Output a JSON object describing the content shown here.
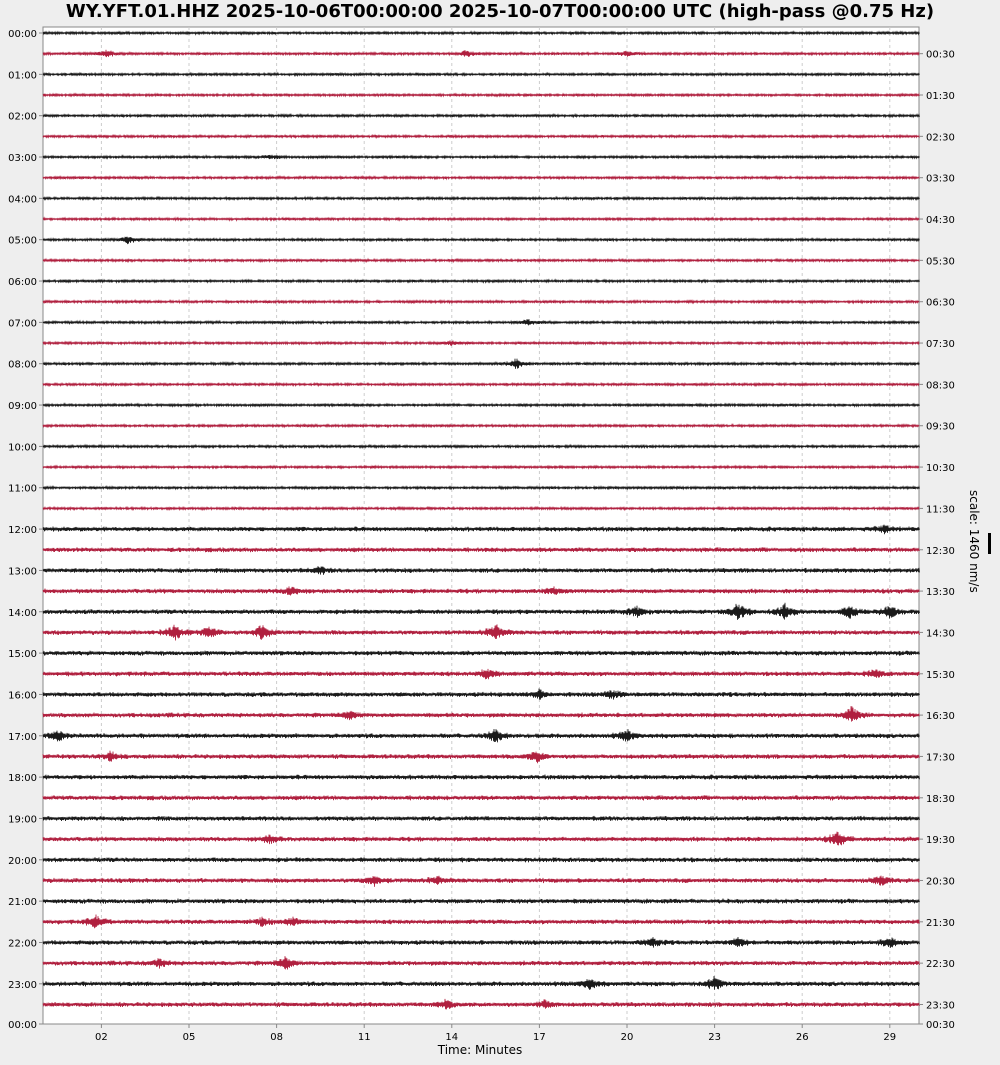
{
  "title": "WY.YFT.01.HHZ 2025-10-06T00:00:00 2025-10-07T00:00:00 UTC (high-pass @0.75 Hz)",
  "scale_label": "scale: 1460 nm/s",
  "colors": {
    "even": "#1a1a1a",
    "odd": "#b0203f",
    "grid": "#cccccc",
    "axis": "#888888"
  },
  "chart_data": {
    "type": "line",
    "title": "WY.YFT.01.HHZ 2025-10-06T00:00:00 2025-10-07T00:00:00 UTC (high-pass @0.75 Hz)",
    "xlabel": "Time: Minutes",
    "xlim": [
      0,
      30
    ],
    "xticks": [
      {
        "v": 2,
        "label": "02"
      },
      {
        "v": 5,
        "label": "05"
      },
      {
        "v": 8,
        "label": "08"
      },
      {
        "v": 11,
        "label": "11"
      },
      {
        "v": 14,
        "label": "14"
      },
      {
        "v": 17,
        "label": "17"
      },
      {
        "v": 20,
        "label": "20"
      },
      {
        "v": 23,
        "label": "23"
      },
      {
        "v": 26,
        "label": "26"
      },
      {
        "v": 29,
        "label": "29"
      }
    ],
    "left_labels": [
      "00:00",
      "01:00",
      "02:00",
      "03:00",
      "04:00",
      "05:00",
      "06:00",
      "07:00",
      "08:00",
      "09:00",
      "10:00",
      "11:00",
      "12:00",
      "13:00",
      "14:00",
      "15:00",
      "16:00",
      "17:00",
      "18:00",
      "19:00",
      "20:00",
      "21:00",
      "22:00",
      "23:00",
      "00:00"
    ],
    "right_labels": [
      "00:30",
      "01:30",
      "02:30",
      "03:30",
      "04:30",
      "05:30",
      "06:30",
      "07:30",
      "08:30",
      "09:30",
      "10:30",
      "11:30",
      "12:30",
      "13:30",
      "14:30",
      "15:30",
      "16:30",
      "17:30",
      "18:30",
      "19:30",
      "20:30",
      "21:30",
      "22:30",
      "23:30",
      "00:30"
    ],
    "rows": 48,
    "noise_level": {
      "rows_0_23": 1.0,
      "rows_24_47": 1.9
    },
    "events": [
      [
        1,
        2.2,
        4
      ],
      [
        1,
        14.5,
        3
      ],
      [
        1,
        20,
        3
      ],
      [
        6,
        7.8,
        2
      ],
      [
        10,
        2.9,
        4
      ],
      [
        14,
        16.6,
        3
      ],
      [
        15,
        14,
        2
      ],
      [
        16,
        16.2,
        5
      ],
      [
        24,
        28.8,
        3
      ],
      [
        26,
        9.5,
        3
      ],
      [
        27,
        8.5,
        4
      ],
      [
        27,
        17.5,
        3
      ],
      [
        28,
        20.3,
        5
      ],
      [
        28,
        23.8,
        8
      ],
      [
        28,
        25.4,
        7
      ],
      [
        28,
        27.6,
        6
      ],
      [
        28,
        29,
        6
      ],
      [
        29,
        4.5,
        7
      ],
      [
        29,
        5.7,
        5
      ],
      [
        29,
        7.5,
        7
      ],
      [
        29,
        15.5,
        8
      ],
      [
        31,
        15.2,
        5
      ],
      [
        31,
        28.5,
        4
      ],
      [
        32,
        17,
        4
      ],
      [
        32,
        19.5,
        4
      ],
      [
        33,
        10.5,
        4
      ],
      [
        33,
        27.7,
        8
      ],
      [
        34,
        0.5,
        5
      ],
      [
        34,
        15.5,
        6
      ],
      [
        34,
        20,
        5
      ],
      [
        35,
        2.3,
        4
      ],
      [
        35,
        16.9,
        5
      ],
      [
        39,
        7.8,
        4
      ],
      [
        39,
        27.2,
        7
      ],
      [
        41,
        11.3,
        5
      ],
      [
        41,
        13.5,
        4
      ],
      [
        41,
        28.7,
        5
      ],
      [
        43,
        1.8,
        6
      ],
      [
        43,
        7.5,
        4
      ],
      [
        43,
        8.5,
        4
      ],
      [
        44,
        20.9,
        4
      ],
      [
        44,
        23.8,
        4
      ],
      [
        44,
        29,
        5
      ],
      [
        45,
        8.3,
        6
      ],
      [
        45,
        4,
        4
      ],
      [
        46,
        18.7,
        5
      ],
      [
        46,
        23,
        6
      ],
      [
        47,
        13.8,
        4
      ],
      [
        47,
        17.2,
        4
      ]
    ]
  }
}
